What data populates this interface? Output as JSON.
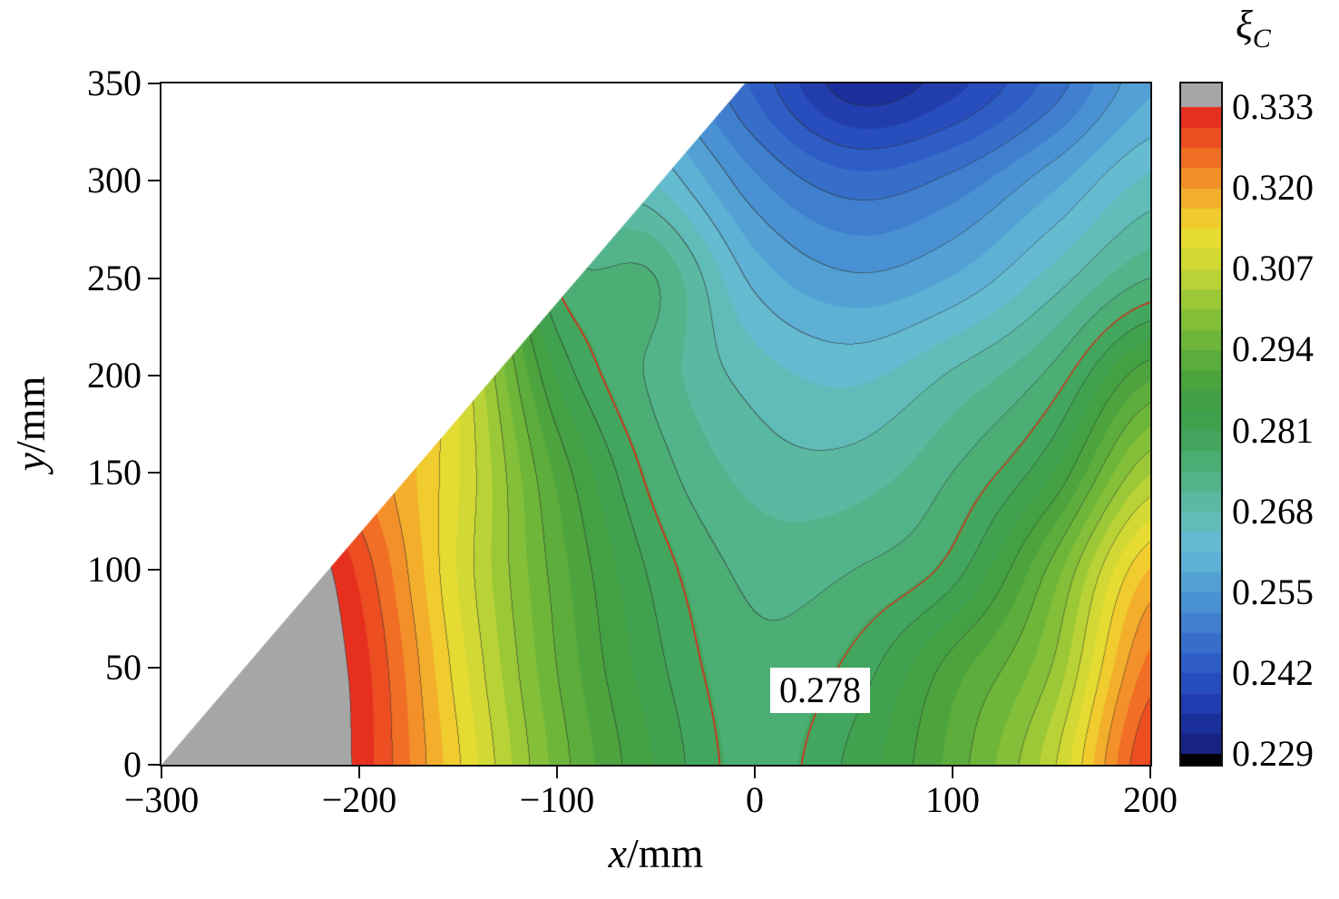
{
  "figure": {
    "background": "#ffffff"
  },
  "chart_data": {
    "type": "contour",
    "title": "",
    "xlabel": {
      "variable": "x",
      "rest": "/mm"
    },
    "ylabel": {
      "variable": "y",
      "rest": "/mm"
    },
    "xlim": [
      -300,
      200
    ],
    "ylim": [
      0,
      350
    ],
    "x_tick_values": [
      -300,
      -200,
      -100,
      0,
      100,
      200
    ],
    "x_tick_labels": [
      "−300",
      "−200",
      "−100",
      "0",
      "100",
      "200"
    ],
    "y_tick_values": [
      0,
      50,
      100,
      150,
      200,
      250,
      300,
      350
    ],
    "y_tick_labels": [
      "0",
      "50",
      "100",
      "150",
      "200",
      "250",
      "300",
      "350"
    ],
    "value_min": 0.229,
    "value_max": 0.333,
    "n_color_bands": 32,
    "thin_contour_step": 0.0065,
    "thin_contour_color": "#2d2d2d",
    "grid": false,
    "colorbar": {
      "title_symbol": "ξ",
      "title_subscript": "C",
      "tick_values": [
        0.333,
        0.32,
        0.307,
        0.294,
        0.281,
        0.268,
        0.255,
        0.242,
        0.229
      ],
      "tick_labels": [
        "0.333",
        "0.320",
        "0.307",
        "0.294",
        "0.281",
        "0.268",
        "0.255",
        "0.242",
        "0.229"
      ],
      "over_color": "#a6a6a6",
      "under_color": "#000000"
    },
    "colormap_stops": [
      {
        "t": 0.0,
        "c": "#141E78"
      },
      {
        "t": 0.065,
        "c": "#1E36A8"
      },
      {
        "t": 0.125,
        "c": "#2B55C4"
      },
      {
        "t": 0.19,
        "c": "#3B78CC"
      },
      {
        "t": 0.25,
        "c": "#4E9AD4"
      },
      {
        "t": 0.32,
        "c": "#66BBD6"
      },
      {
        "t": 0.375,
        "c": "#5FBCAE"
      },
      {
        "t": 0.44,
        "c": "#4FB07E"
      },
      {
        "t": 0.5,
        "c": "#3FA253"
      },
      {
        "t": 0.56,
        "c": "#449F3F"
      },
      {
        "t": 0.625,
        "c": "#63B23A"
      },
      {
        "t": 0.69,
        "c": "#8FC437"
      },
      {
        "t": 0.75,
        "c": "#C8D835"
      },
      {
        "t": 0.81,
        "c": "#EFDC31"
      },
      {
        "t": 0.875,
        "c": "#F4A12B"
      },
      {
        "t": 0.935,
        "c": "#EF6023"
      },
      {
        "t": 1.0,
        "c": "#E4201E"
      }
    ],
    "highlight_contour": {
      "level": 0.278,
      "color": "#E32017",
      "label": "0.278",
      "label_x": 33,
      "label_y": 38
    },
    "mask_boundary": {
      "p1": [
        -300,
        0
      ],
      "p2": [
        -5,
        350
      ]
    },
    "field": {
      "xs": [
        -300,
        -250,
        -200,
        -150,
        -100,
        -50,
        0,
        50,
        100,
        150,
        200
      ],
      "ys": [
        0,
        50,
        100,
        150,
        200,
        250,
        300,
        350
      ],
      "values": [
        [
          0.35,
          0.342,
          0.332,
          0.314,
          0.296,
          0.284,
          0.2765,
          0.282,
          0.292,
          0.306,
          0.33
        ],
        [
          0.348,
          0.34,
          0.3315,
          0.312,
          0.294,
          0.282,
          0.2755,
          0.279,
          0.289,
          0.3005,
          0.3245
        ],
        [
          0.346,
          0.341,
          0.329,
          0.31,
          0.2925,
          0.28,
          0.2735,
          0.2745,
          0.2795,
          0.295,
          0.317
        ],
        [
          0.344,
          0.336,
          0.324,
          0.3105,
          0.29,
          0.2765,
          0.27,
          0.2695,
          0.2745,
          0.284,
          0.3035
        ],
        [
          0.342,
          0.334,
          0.326,
          0.31,
          0.284,
          0.2735,
          0.2665,
          0.264,
          0.2685,
          0.2755,
          0.29
        ],
        [
          0.34,
          0.332,
          0.322,
          0.306,
          0.2775,
          0.2745,
          0.2605,
          0.2555,
          0.2585,
          0.266,
          0.2745
        ],
        [
          0.338,
          0.33,
          0.318,
          0.302,
          0.272,
          0.2645,
          0.2525,
          0.2465,
          0.2495,
          0.257,
          0.2655
        ],
        [
          0.336,
          0.328,
          0.314,
          0.298,
          0.266,
          0.256,
          0.2445,
          0.2335,
          0.2375,
          0.2465,
          0.2575
        ]
      ]
    }
  }
}
